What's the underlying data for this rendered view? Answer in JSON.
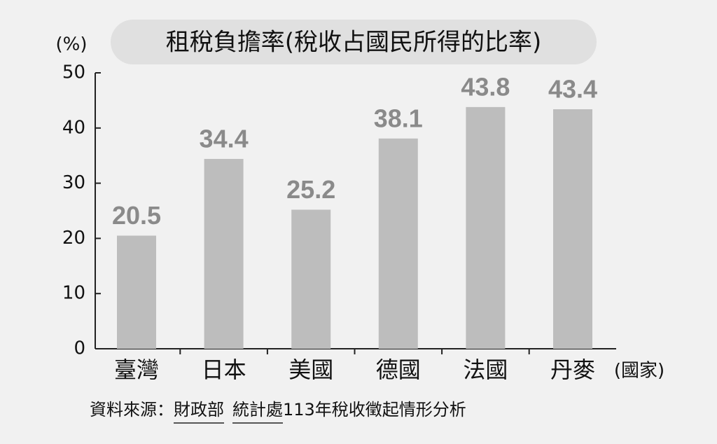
{
  "chart_data": {
    "type": "bar",
    "title": "租稅負擔率(稅收占國民所得的比率)",
    "y_label": "(%)",
    "x_label": "(國家)",
    "categories": [
      "臺灣",
      "日本",
      "美國",
      "德國",
      "法國",
      "丹麥"
    ],
    "values": [
      20.5,
      34.4,
      25.2,
      38.1,
      43.8,
      43.4
    ],
    "color": "#bdbdbd",
    "ylim": [
      0,
      50
    ],
    "yticks": [
      0,
      10,
      20,
      30,
      40,
      50
    ],
    "source": [
      "資料來源：",
      "財政部",
      "統計處",
      "113年稅收徵起情形分析"
    ]
  }
}
